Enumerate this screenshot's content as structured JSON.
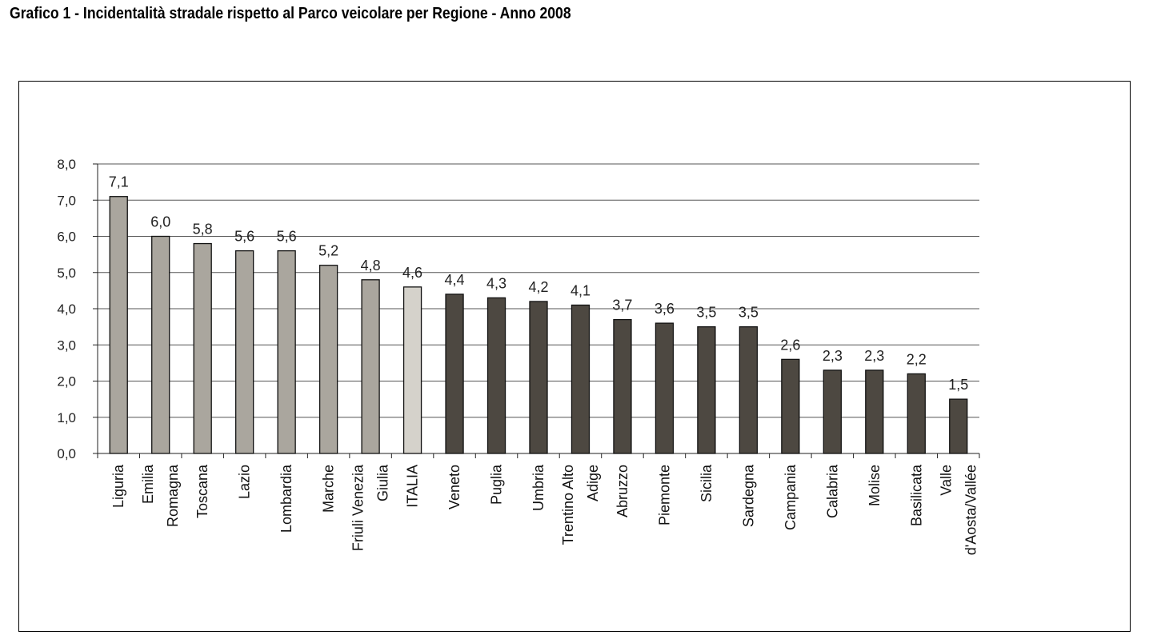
{
  "chart_data": {
    "type": "bar",
    "title": "Grafico 1  - Incidentalità stradale rispetto al Parco veicolare per Regione - Anno 2008",
    "xlabel": "",
    "ylabel": "",
    "ylim": [
      0,
      8
    ],
    "yticks": [
      "0,0",
      "1,0",
      "2,0",
      "3,0",
      "4,0",
      "5,0",
      "6,0",
      "7,0",
      "8,0"
    ],
    "grid": true,
    "categories": [
      "Liguria",
      "Emilia Romagna",
      "Toscana",
      "Lazio",
      "Lombardia",
      "Marche",
      "Friuli Venezia Giulia",
      "ITALIA",
      "Veneto",
      "Puglia",
      "Umbria",
      "Trentino Alto Adige",
      "Abruzzo",
      "Piemonte",
      "Sicilia",
      "Sardegna",
      "Campania",
      "Calabria",
      "Molise",
      "Basilicata",
      "Valle d'Aosta/Vallée"
    ],
    "category_lines": [
      [
        "Liguria"
      ],
      [
        "Emilia",
        "Romagna"
      ],
      [
        "Toscana"
      ],
      [
        "Lazio"
      ],
      [
        "Lombardia"
      ],
      [
        "Marche"
      ],
      [
        "Friuli Venezia",
        "Giulia"
      ],
      [
        "ITALIA"
      ],
      [
        "Veneto"
      ],
      [
        "Puglia"
      ],
      [
        "Umbria"
      ],
      [
        "Trentino Alto",
        "Adige"
      ],
      [
        "Abruzzo"
      ],
      [
        "Piemonte"
      ],
      [
        "Sicilia"
      ],
      [
        "Sardegna"
      ],
      [
        "Campania"
      ],
      [
        "Calabria"
      ],
      [
        "Molise"
      ],
      [
        "Basilicata"
      ],
      [
        "Valle",
        "d'Aosta/Vallée"
      ]
    ],
    "values": [
      7.1,
      6.0,
      5.8,
      5.6,
      5.6,
      5.2,
      4.8,
      4.6,
      4.4,
      4.3,
      4.2,
      4.1,
      3.7,
      3.6,
      3.5,
      3.5,
      2.6,
      2.3,
      2.3,
      2.2,
      1.5
    ],
    "value_labels": [
      "7,1",
      "6,0",
      "5,8",
      "5,6",
      "5,6",
      "5,2",
      "4,8",
      "4,6",
      "4,4",
      "4,3",
      "4,2",
      "4,1",
      "3,7",
      "3,6",
      "3,5",
      "3,5",
      "2,6",
      "2,3",
      "2,3",
      "2,2",
      "1,5"
    ],
    "bar_groups": [
      "above",
      "above",
      "above",
      "above",
      "above",
      "above",
      "above",
      "italia",
      "below",
      "below",
      "below",
      "below",
      "below",
      "below",
      "below",
      "below",
      "below",
      "below",
      "below",
      "below",
      "below"
    ],
    "colors": {
      "above": "#aaa69e",
      "italia": "#d5d2cb",
      "below": "#4d4841",
      "bar_stroke": "#111111",
      "grid": "#555555"
    }
  }
}
